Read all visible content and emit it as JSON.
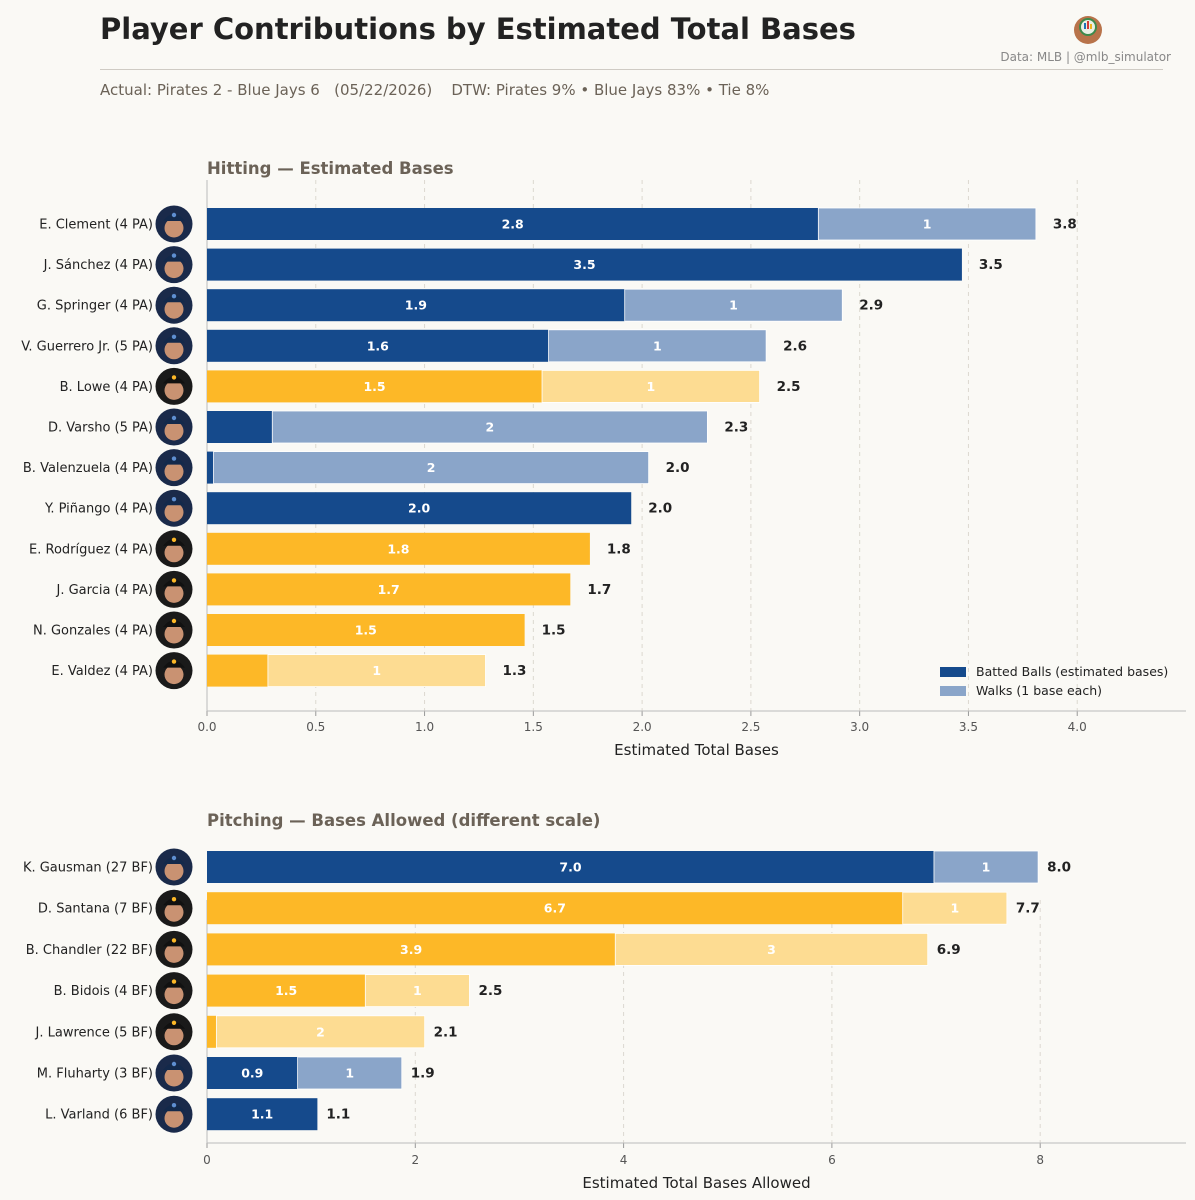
{
  "header": {
    "title": "Player Contributions by Estimated Total Bases",
    "credit": "Data: MLB  |  @mlb_simulator",
    "subtitle": "Actual: Pirates 2 - Blue Jays 6   (05/22/2026)    DTW: Pirates 9% • Blue Jays 83% • Tie 8%"
  },
  "colors": {
    "blue_jays_batted": "#154a8c",
    "blue_jays_walks": "#8aa5c9",
    "pirates_batted": "#fdb827",
    "pirates_walks": "#fddc92",
    "background": "#faf9f5"
  },
  "legend": {
    "batted_label": "Batted Balls (estimated bases)",
    "walks_label": "Walks (1 base each)"
  },
  "chart_data": [
    {
      "type": "bar",
      "orientation": "horizontal",
      "stacked": true,
      "title": "Hitting  —  Estimated Bases",
      "xlabel": "Estimated Total Bases",
      "xlim": [
        0,
        4.5
      ],
      "xticks": [
        "0.0",
        "0.5",
        "1.0",
        "1.5",
        "2.0",
        "2.5",
        "3.0",
        "3.5",
        "4.0"
      ],
      "grid": "vertical dashed",
      "legend_position": "bottom-right",
      "rows": [
        {
          "label": "E. Clement  (4 PA)",
          "team": "Blue Jays",
          "batted": 2.81,
          "walks": 1,
          "batted_label": "2.8",
          "walks_label": "1",
          "total_label": "3.8"
        },
        {
          "label": "J. Sánchez  (4 PA)",
          "team": "Blue Jays",
          "batted": 3.47,
          "walks": 0,
          "batted_label": "3.5",
          "walks_label": "",
          "total_label": "3.5"
        },
        {
          "label": "G. Springer  (4 PA)",
          "team": "Blue Jays",
          "batted": 1.92,
          "walks": 1,
          "batted_label": "1.9",
          "walks_label": "1",
          "total_label": "2.9"
        },
        {
          "label": "V. Guerrero Jr.  (5 PA)",
          "team": "Blue Jays",
          "batted": 1.57,
          "walks": 1,
          "batted_label": "1.6",
          "walks_label": "1",
          "total_label": "2.6"
        },
        {
          "label": "B. Lowe  (4 PA)",
          "team": "Pirates",
          "batted": 1.54,
          "walks": 1,
          "batted_label": "1.5",
          "walks_label": "1",
          "total_label": "2.5"
        },
        {
          "label": "D. Varsho  (5 PA)",
          "team": "Blue Jays",
          "batted": 0.3,
          "walks": 2,
          "batted_label": "",
          "walks_label": "2",
          "total_label": "2.3"
        },
        {
          "label": "B. Valenzuela  (4 PA)",
          "team": "Blue Jays",
          "batted": 0.03,
          "walks": 2,
          "batted_label": "",
          "walks_label": "2",
          "total_label": "2.0"
        },
        {
          "label": "Y. Piñango  (4 PA)",
          "team": "Blue Jays",
          "batted": 1.95,
          "walks": 0,
          "batted_label": "2.0",
          "walks_label": "",
          "total_label": "2.0"
        },
        {
          "label": "E. Rodríguez  (4 PA)",
          "team": "Pirates",
          "batted": 1.76,
          "walks": 0,
          "batted_label": "1.8",
          "walks_label": "",
          "total_label": "1.8"
        },
        {
          "label": "J. Garcia  (4 PA)",
          "team": "Pirates",
          "batted": 1.67,
          "walks": 0,
          "batted_label": "1.7",
          "walks_label": "",
          "total_label": "1.7"
        },
        {
          "label": "N. Gonzales  (4 PA)",
          "team": "Pirates",
          "batted": 1.46,
          "walks": 0,
          "batted_label": "1.5",
          "walks_label": "",
          "total_label": "1.5"
        },
        {
          "label": "E. Valdez  (4 PA)",
          "team": "Pirates",
          "batted": 0.28,
          "walks": 1,
          "batted_label": "",
          "walks_label": "1",
          "total_label": "1.3"
        }
      ]
    },
    {
      "type": "bar",
      "orientation": "horizontal",
      "stacked": true,
      "title": "Pitching  —  Bases Allowed  (different scale)",
      "xlabel": "Estimated Total Bases Allowed",
      "xlim": [
        0,
        9.4
      ],
      "xticks": [
        "0",
        "2",
        "4",
        "6",
        "8"
      ],
      "grid": "vertical dashed",
      "rows": [
        {
          "label": "K. Gausman  (27 BF)",
          "team": "Blue Jays",
          "batted": 6.98,
          "walks": 1,
          "batted_label": "7.0",
          "walks_label": "1",
          "total_label": "8.0"
        },
        {
          "label": "D. Santana  (7 BF)",
          "team": "Pirates",
          "batted": 6.68,
          "walks": 1,
          "batted_label": "6.7",
          "walks_label": "1",
          "total_label": "7.7"
        },
        {
          "label": "B. Chandler  (22 BF)",
          "team": "Pirates",
          "batted": 3.92,
          "walks": 3,
          "batted_label": "3.9",
          "walks_label": "3",
          "total_label": "6.9"
        },
        {
          "label": "B. Bidois  (4 BF)",
          "team": "Pirates",
          "batted": 1.52,
          "walks": 1,
          "batted_label": "1.5",
          "walks_label": "1",
          "total_label": "2.5"
        },
        {
          "label": "J. Lawrence  (5 BF)",
          "team": "Pirates",
          "batted": 0.09,
          "walks": 2,
          "batted_label": "",
          "walks_label": "2",
          "total_label": "2.1"
        },
        {
          "label": "M. Fluharty  (3 BF)",
          "team": "Blue Jays",
          "batted": 0.87,
          "walks": 1,
          "batted_label": "0.9",
          "walks_label": "1",
          "total_label": "1.9"
        },
        {
          "label": "L. Varland  (6 BF)",
          "team": "Blue Jays",
          "batted": 1.06,
          "walks": 0,
          "batted_label": "1.1",
          "walks_label": "",
          "total_label": "1.1"
        }
      ]
    }
  ]
}
